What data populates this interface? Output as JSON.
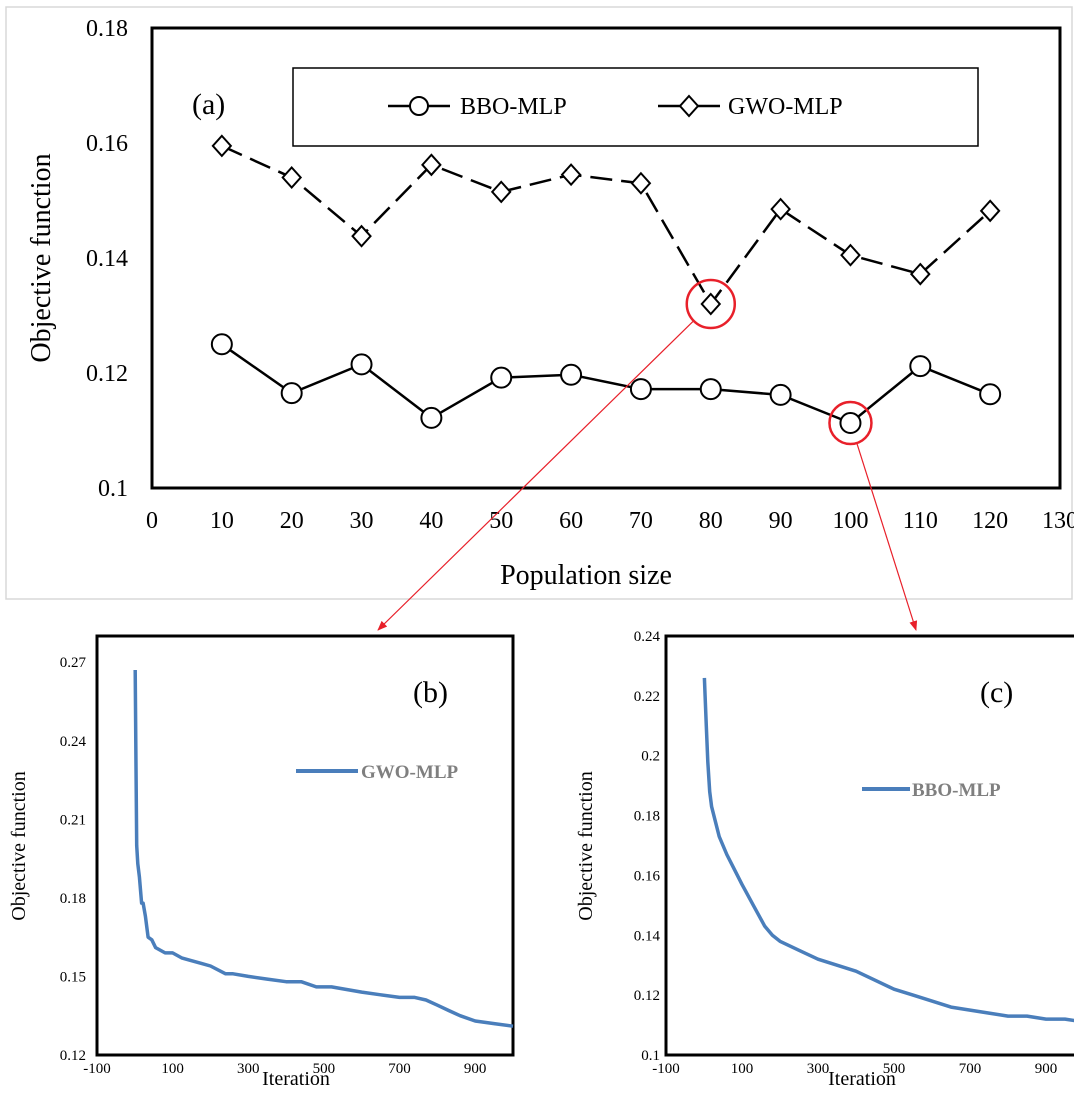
{
  "chart_data": [
    {
      "panel": "(a)",
      "type": "line",
      "xlabel": "Population size",
      "ylabel": "Objective function",
      "xlim": [
        0,
        130
      ],
      "ylim": [
        0.1,
        0.18
      ],
      "x_ticks": [
        "0",
        "10",
        "20",
        "30",
        "40",
        "50",
        "60",
        "70",
        "80",
        "90",
        "100",
        "110",
        "120",
        "130"
      ],
      "y_ticks": [
        "0.1",
        "0.12",
        "0.14",
        "0.16",
        "0.18"
      ],
      "legend_position": "top",
      "x": [
        10,
        20,
        30,
        40,
        50,
        60,
        70,
        80,
        90,
        100,
        110,
        120
      ],
      "series": [
        {
          "name": "BBO-MLP",
          "marker": "circle",
          "line": "solid",
          "values": [
            0.125,
            0.1165,
            0.1215,
            0.1122,
            0.1192,
            0.1197,
            0.1172,
            0.1172,
            0.1162,
            0.1113,
            0.1212,
            0.1163
          ]
        },
        {
          "name": "GWO-MLP",
          "marker": "diamond",
          "line": "dashed",
          "values": [
            0.1595,
            0.154,
            0.1438,
            0.1562,
            0.1515,
            0.1545,
            0.153,
            0.132,
            0.1485,
            0.1405,
            0.1372,
            0.1482
          ]
        }
      ],
      "highlights": [
        {
          "series": "GWO-MLP",
          "x": 80,
          "leads_to": "(b)"
        },
        {
          "series": "BBO-MLP",
          "x": 100,
          "leads_to": "(c)"
        }
      ],
      "highlight_color": "#e8202a"
    },
    {
      "panel": "(b)",
      "type": "line",
      "xlabel": "Iteration",
      "ylabel": "Objective function",
      "xlim": [
        -100,
        1000
      ],
      "ylim": [
        0.12,
        0.28
      ],
      "x_ticks": [
        "-100",
        "100",
        "300",
        "500",
        "700",
        "900"
      ],
      "y_ticks": [
        "0.12",
        "0.15",
        "0.18",
        "0.21",
        "0.24",
        "0.27"
      ],
      "legend_position": "top-right",
      "line_color": "#4a7ebb",
      "series": [
        {
          "name": "GWO-MLP",
          "x": [
            1,
            3,
            5,
            8,
            12,
            18,
            22,
            28,
            35,
            45,
            55,
            80,
            100,
            125,
            150,
            175,
            200,
            240,
            260,
            300,
            350,
            400,
            440,
            480,
            520,
            560,
            600,
            650,
            700,
            740,
            770,
            800,
            830,
            860,
            900,
            950,
            1000
          ],
          "values": [
            0.267,
            0.23,
            0.2,
            0.193,
            0.188,
            0.178,
            0.178,
            0.173,
            0.165,
            0.164,
            0.161,
            0.159,
            0.159,
            0.157,
            0.156,
            0.155,
            0.154,
            0.151,
            0.151,
            0.15,
            0.149,
            0.148,
            0.148,
            0.146,
            0.146,
            0.145,
            0.144,
            0.143,
            0.142,
            0.142,
            0.141,
            0.139,
            0.137,
            0.135,
            0.133,
            0.132,
            0.131
          ]
        }
      ]
    },
    {
      "panel": "(c)",
      "type": "line",
      "xlabel": "Iteration",
      "ylabel": "Objective function",
      "xlim": [
        -100,
        1000
      ],
      "ylim": [
        0.1,
        0.24
      ],
      "x_ticks": [
        "-100",
        "100",
        "300",
        "500",
        "700",
        "900"
      ],
      "y_ticks": [
        "0.1",
        "0.12",
        "0.14",
        "0.16",
        "0.18",
        "0.2",
        "0.22",
        "0.24"
      ],
      "legend_position": "top-right",
      "line_color": "#4a7ebb",
      "series": [
        {
          "name": "BBO-MLP",
          "x": [
            1,
            3,
            6,
            10,
            15,
            20,
            30,
            40,
            60,
            80,
            100,
            130,
            160,
            180,
            200,
            250,
            300,
            350,
            400,
            450,
            500,
            550,
            600,
            650,
            700,
            750,
            800,
            850,
            900,
            950,
            1000
          ],
          "values": [
            0.226,
            0.22,
            0.21,
            0.198,
            0.188,
            0.183,
            0.178,
            0.173,
            0.167,
            0.162,
            0.157,
            0.15,
            0.143,
            0.14,
            0.138,
            0.135,
            0.132,
            0.13,
            0.128,
            0.125,
            0.122,
            0.12,
            0.118,
            0.116,
            0.115,
            0.114,
            0.113,
            0.113,
            0.112,
            0.112,
            0.111
          ]
        }
      ]
    }
  ]
}
